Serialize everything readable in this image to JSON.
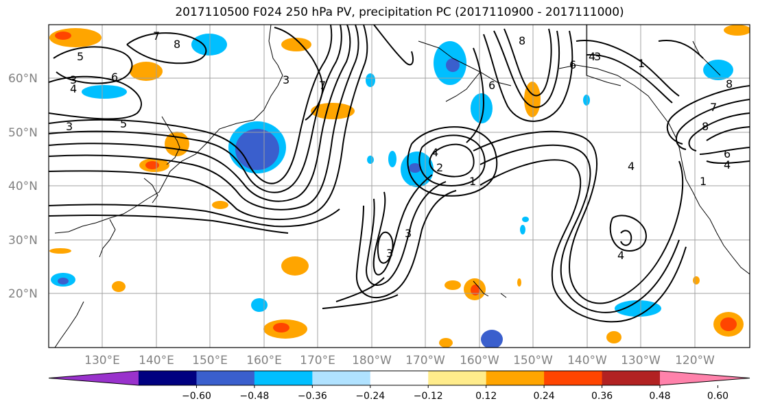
{
  "title": "2017110500 F024 250 hPa PV, precipitation PC (2017110900 - 2017111000)",
  "lat_labels": [
    "60°N",
    "50°N",
    "40°N",
    "30°N",
    "20°N"
  ],
  "lon_labels": [
    "130°E",
    "140°E",
    "150°E",
    "160°E",
    "170°E",
    "180°W",
    "170°W",
    "160°W",
    "150°W",
    "140°W",
    "130°W",
    "120°W"
  ],
  "colorbar": {
    "ticks": [
      "−0.60",
      "−0.48",
      "−0.36",
      "−0.24",
      "−0.12",
      "0.12",
      "0.24",
      "0.36",
      "0.48",
      "0.60"
    ],
    "colors": [
      "#9932cc",
      "#000080",
      "#3a5fcd",
      "#00bfff",
      "#b0e2ff",
      "#ffffff",
      "#ffec8b",
      "#ffa500",
      "#ff4500",
      "#b22222",
      "#ff82ab"
    ]
  },
  "contour_labels": [
    "7",
    "8",
    "5",
    "3",
    "4",
    "6",
    "3",
    "5",
    "3",
    "7",
    "8",
    "6",
    "4",
    "1",
    "3",
    "8",
    "6",
    "4",
    "1",
    "8",
    "7",
    "6",
    "4",
    "2",
    "1",
    "4",
    "3",
    "3",
    "4"
  ]
}
